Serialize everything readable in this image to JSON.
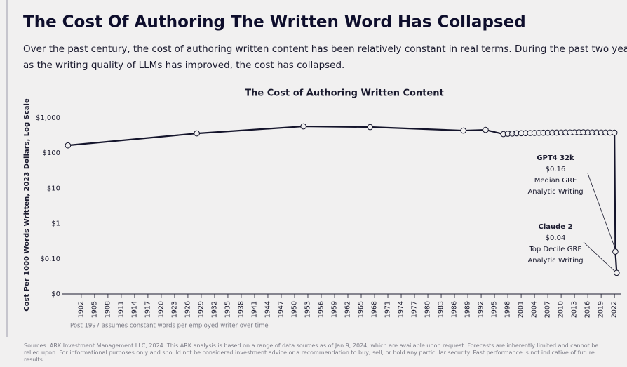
{
  "title": "The Cost Of Authoring The Written Word Has Collapsed",
  "subtitle_lines": [
    "Over the past century, the cost of authoring written content has been relatively constant in real terms. During the past two years,",
    "as the writing quality of LLMs has improved, the cost has collapsed."
  ],
  "chart_data": {
    "type": "line",
    "title": "The Cost of Authoring Written Content",
    "y_label": "Cost Per 1000 Words Written, 2023 Dollars, Log Scale",
    "log_scale": true,
    "color": "#14142b",
    "x": [
      1899,
      1928,
      1952,
      1967,
      1988,
      1993,
      1997,
      1998,
      1999,
      2000,
      2001,
      2002,
      2003,
      2004,
      2005,
      2006,
      2007,
      2008,
      2009,
      2010,
      2011,
      2012,
      2013,
      2014,
      2015,
      2016,
      2017,
      2018,
      2019,
      2020,
      2021,
      2022,
      2022.2,
      2022.5
    ],
    "values": [
      166,
      363,
      575,
      550,
      437,
      457,
      347,
      355,
      360,
      365,
      368,
      370,
      372,
      374,
      376,
      378,
      380,
      382,
      383,
      384,
      385,
      386,
      388,
      390,
      390,
      388,
      386,
      385,
      384,
      384,
      383,
      380,
      0.16,
      0.04
    ],
    "xlim": [
      1897.6,
      2023.4
    ],
    "xticks": [
      1902,
      1905,
      1908,
      1911,
      1914,
      1917,
      1920,
      1923,
      1926,
      1929,
      1932,
      1935,
      1938,
      1941,
      1944,
      1947,
      1950,
      1953,
      1956,
      1959,
      1962,
      1965,
      1968,
      1971,
      1974,
      1977,
      1980,
      1983,
      1986,
      1989,
      1992,
      1995,
      1998,
      2001,
      2004,
      2007,
      2010,
      2013,
      2016,
      2019,
      2022
    ],
    "ylim": [
      0.01,
      1000
    ],
    "yticks": [
      {
        "value": 0.01,
        "label": "$0"
      },
      {
        "value": 0.1,
        "label": "$0.10"
      },
      {
        "value": 1,
        "label": "$1"
      },
      {
        "value": 10,
        "label": "$10"
      },
      {
        "value": 100,
        "label": "$100"
      },
      {
        "value": 1000,
        "label": "$1,000"
      }
    ],
    "annotations": [
      {
        "lines": [
          "GPT4 32k",
          "$0.16",
          "Median GRE",
          "Analytic Writing"
        ]
      },
      {
        "lines": [
          "Claude 2",
          "$0.04",
          "Top Decile GRE",
          "Analytic Writing"
        ]
      }
    ],
    "footnote": "Post 1997 assumes constant words per employed writer over time"
  },
  "sources": "Sources: ARK Investment Management LLC, 2024. This ARK analysis is based on a range of data sources as of Jan 9, 2024, which are available upon request. Forecasts are inherently limited and cannot be relied upon. For informational purposes only and should not be considered investment advice or a recommendation to buy, sell, or hold any particular security. Past performance is not indicative of future results."
}
